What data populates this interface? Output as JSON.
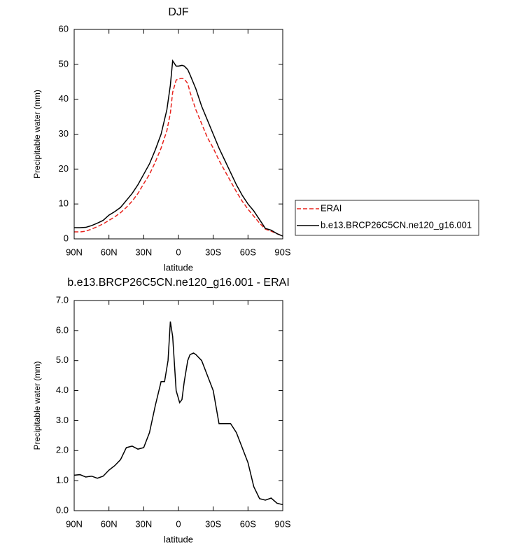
{
  "chart_data": [
    {
      "type": "line",
      "title": "DJF",
      "x_label": "latitude",
      "y_label": "Precipitable water (mm)",
      "x": [
        90,
        85,
        80,
        75,
        70,
        65,
        60,
        55,
        50,
        45,
        40,
        35,
        30,
        25,
        20,
        15,
        10,
        7,
        5,
        2,
        0,
        -3,
        -5,
        -8,
        -10,
        -15,
        -20,
        -25,
        -30,
        -35,
        -40,
        -45,
        -50,
        -55,
        -60,
        -65,
        -70,
        -75,
        -80,
        -85,
        -90
      ],
      "series": [
        {
          "name": "ERAI",
          "color": "#e8231d",
          "line_style": "dashed",
          "values": [
            2,
            2,
            2.2,
            2.8,
            3.5,
            4.3,
            5.3,
            6.3,
            7.5,
            9,
            10.8,
            13,
            15.8,
            18.5,
            22,
            26,
            31,
            36,
            42,
            45.5,
            45.8,
            46,
            45.8,
            44.5,
            42,
            37,
            33,
            29,
            26,
            22.5,
            19.5,
            16.5,
            13.5,
            10.8,
            8.5,
            6.5,
            4.5,
            2.8,
            2.2,
            1.5,
            0.8
          ]
        },
        {
          "name": "b.e13.BRCP26C5CN.ne120_g16.001",
          "color": "#000000",
          "line_style": "solid",
          "values": [
            3.2,
            3.2,
            3.3,
            3.8,
            4.5,
            5.3,
            6.8,
            7.8,
            9,
            11,
            13,
            15.5,
            18.5,
            21.5,
            25.5,
            30,
            37,
            44,
            51,
            49.5,
            49.5,
            49.7,
            49.5,
            48.5,
            47,
            43,
            38,
            34,
            30,
            26,
            22.5,
            19,
            15.5,
            12.5,
            10,
            8,
            5.5,
            3,
            2.5,
            1.5,
            0.8
          ]
        }
      ],
      "xlim": [
        90,
        -90
      ],
      "xticks": [
        {
          "value": 90,
          "label": "90N"
        },
        {
          "value": 60,
          "label": "60N"
        },
        {
          "value": 30,
          "label": "30N"
        },
        0,
        {
          "value": -30,
          "label": "30S"
        },
        {
          "value": -60,
          "label": "60S"
        },
        {
          "value": -90,
          "label": "90S"
        }
      ],
      "ylim": [
        0,
        60
      ],
      "yticks": [
        0,
        10,
        20,
        30,
        40,
        50,
        60
      ],
      "legend": "right"
    },
    {
      "type": "line",
      "title": "b.e13.BRCP26C5CN.ne120_g16.001 - ERAI",
      "x_label": "latitude",
      "y_label": "Precipitable water (mm)",
      "x": [
        90,
        85,
        80,
        75,
        70,
        65,
        60,
        55,
        50,
        45,
        40,
        35,
        30,
        25,
        20,
        15,
        12,
        9,
        7,
        5,
        2,
        -1,
        -3,
        -5,
        -8,
        -10,
        -13,
        -15,
        -20,
        -25,
        -30,
        -35,
        -40,
        -45,
        -50,
        -55,
        -60,
        -65,
        -70,
        -75,
        -80,
        -85,
        -90
      ],
      "series": [
        {
          "color": "#000000",
          "line_style": "solid",
          "values": [
            1.18,
            1.2,
            1.12,
            1.15,
            1.08,
            1.15,
            1.35,
            1.5,
            1.7,
            2.1,
            2.15,
            2.05,
            2.1,
            2.6,
            3.5,
            4.3,
            4.3,
            5.0,
            6.3,
            5.8,
            4.0,
            3.6,
            3.7,
            4.3,
            5.0,
            5.2,
            5.25,
            5.2,
            5.0,
            4.5,
            4.0,
            2.9,
            2.9,
            2.9,
            2.6,
            2.1,
            1.6,
            0.8,
            0.4,
            0.35,
            0.42,
            0.25,
            0.2
          ]
        }
      ],
      "xlim": [
        90,
        -90
      ],
      "xticks": [
        {
          "value": 90,
          "label": "90N"
        },
        {
          "value": 60,
          "label": "60N"
        },
        {
          "value": 30,
          "label": "30N"
        },
        0,
        {
          "value": -30,
          "label": "30S"
        },
        {
          "value": -60,
          "label": "60S"
        },
        {
          "value": -90,
          "label": "90S"
        }
      ],
      "ylim": [
        0,
        7
      ],
      "yticks": [
        {
          "value": 0,
          "label": "0.0"
        },
        {
          "value": 1,
          "label": "1.0"
        },
        {
          "value": 2,
          "label": "2.0"
        },
        {
          "value": 3,
          "label": "3.0"
        },
        {
          "value": 4,
          "label": "4.0"
        },
        {
          "value": 5,
          "label": "5.0"
        },
        {
          "value": 6,
          "label": "6.0"
        },
        {
          "value": 7,
          "label": "7.0"
        }
      ]
    }
  ]
}
